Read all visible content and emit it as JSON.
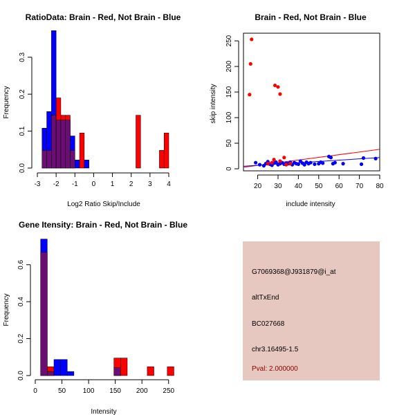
{
  "colors": {
    "red": "#ff0000",
    "blue": "#0000ff",
    "overlap": "#6a0d74",
    "panel_bg": "#e6c8c0",
    "pval": "#8b0000"
  },
  "chart_data": [
    {
      "type": "bar",
      "id": "ratio-hist",
      "title": "RatioData: Brain - Red, Not Brain - Blue",
      "xlabel": "Log2 Ratio Skip/Include",
      "ylabel": "Frequency",
      "xlim": [
        -3,
        4
      ],
      "ylim": [
        0,
        0.38
      ],
      "xticks": [
        -3,
        -2,
        -1,
        0,
        1,
        2,
        3,
        4
      ],
      "yticks": [
        0.0,
        0.1,
        0.2,
        0.3
      ],
      "xtick_labels": [
        "-3",
        "-2",
        "-1",
        "0",
        "1",
        "2",
        "3",
        "4"
      ],
      "ytick_labels": [
        "0.0",
        "0.1",
        "0.2",
        "0.3"
      ],
      "bin_width": 0.25,
      "bin_starts": [
        -2.75,
        -2.5,
        -2.25,
        -2.0,
        -1.75,
        -1.5,
        -1.25,
        -1.0,
        -0.75,
        -0.5,
        2.25,
        3.5,
        3.75
      ],
      "series": [
        {
          "name": "Brain",
          "color": "red",
          "values": [
            0.048,
            0.048,
            0.143,
            0.19,
            0.143,
            0.143,
            0.048,
            0.0,
            0.095,
            0.0,
            0.143,
            0.048,
            0.095
          ]
        },
        {
          "name": "Not Brain",
          "color": "blue",
          "values": [
            0.108,
            0.153,
            0.372,
            0.13,
            0.13,
            0.13,
            0.087,
            0.022,
            0.0,
            0.022,
            0.0,
            0.0,
            0.0
          ]
        }
      ]
    },
    {
      "type": "scatter",
      "id": "intensity-scatter",
      "title": "Brain - Red, Not Brain - Blue",
      "xlabel": "include intensity",
      "ylabel": "skip intensity",
      "xlim": [
        13,
        80
      ],
      "ylim": [
        -4,
        265
      ],
      "xticks": [
        20,
        30,
        40,
        50,
        60,
        70,
        80
      ],
      "yticks": [
        0,
        50,
        100,
        150,
        200,
        250
      ],
      "xtick_labels": [
        "20",
        "30",
        "40",
        "50",
        "60",
        "70",
        "80"
      ],
      "ytick_labels": [
        "0",
        "50",
        "100",
        "150",
        "200",
        "250"
      ],
      "series": [
        {
          "name": "Brain",
          "color": "red",
          "x": [
            16,
            16.5,
            17,
            28.5,
            30,
            31,
            25,
            27,
            28,
            31,
            33,
            34,
            36
          ],
          "y": [
            145,
            205,
            253,
            163,
            160,
            146,
            10,
            12,
            18,
            15,
            22,
            8,
            10
          ]
        },
        {
          "name": "Not Brain",
          "color": "blue",
          "x": [
            19,
            21,
            23,
            24,
            25,
            26,
            27,
            28,
            29,
            30,
            31,
            32,
            33,
            34,
            35,
            36,
            37,
            38,
            39,
            40,
            41,
            42,
            43,
            44,
            45,
            46,
            48,
            50,
            51,
            52,
            55,
            56,
            57,
            58,
            62,
            71,
            72,
            78
          ],
          "y": [
            12,
            8,
            6,
            10,
            14,
            9,
            7,
            11,
            13,
            8,
            10,
            12,
            9,
            11,
            10,
            13,
            8,
            12,
            10,
            9,
            15,
            11,
            8,
            13,
            10,
            12,
            9,
            10,
            13,
            11,
            24,
            22,
            10,
            12,
            10,
            9,
            21,
            20
          ]
        }
      ],
      "fit_lines": [
        {
          "color": "red",
          "x": [
            13,
            80
          ],
          "y": [
            3,
            38
          ]
        },
        {
          "color": "blue",
          "x": [
            13,
            80
          ],
          "y": [
            5,
            22
          ]
        }
      ]
    },
    {
      "type": "bar",
      "id": "gene-intensity-hist",
      "title": "Gene Itensity: Brain - Red, Not Brain - Blue",
      "xlabel": "Intensity",
      "ylabel": "Frequency",
      "xlim": [
        0,
        262
      ],
      "ylim": [
        0,
        0.76
      ],
      "xticks": [
        0,
        50,
        100,
        150,
        200,
        250
      ],
      "yticks": [
        0.0,
        0.2,
        0.4,
        0.6
      ],
      "xtick_labels": [
        "0",
        "50",
        "100",
        "150",
        "200",
        "250"
      ],
      "ytick_labels": [
        "0.0",
        "0.2",
        "0.4",
        "0.6"
      ],
      "bin_width": 12.5,
      "bin_starts": [
        10,
        22.5,
        35,
        47.5,
        60,
        147.5,
        160,
        210,
        247.5
      ],
      "series": [
        {
          "name": "Brain",
          "color": "red",
          "values": [
            0.667,
            0.048,
            0.0,
            0.0,
            0.0,
            0.095,
            0.095,
            0.048,
            0.048
          ]
        },
        {
          "name": "Not Brain",
          "color": "blue",
          "values": [
            0.739,
            0.022,
            0.087,
            0.087,
            0.022,
            0.043,
            0.0,
            0.0,
            0.0
          ]
        }
      ]
    }
  ],
  "info_panel": {
    "probe_id": "G7069368@J931879@i_at",
    "event_type": "altTxEnd",
    "accession": "BC027668",
    "location": "chr3.16495-1.5",
    "pval": "Pval: 2.000000"
  }
}
